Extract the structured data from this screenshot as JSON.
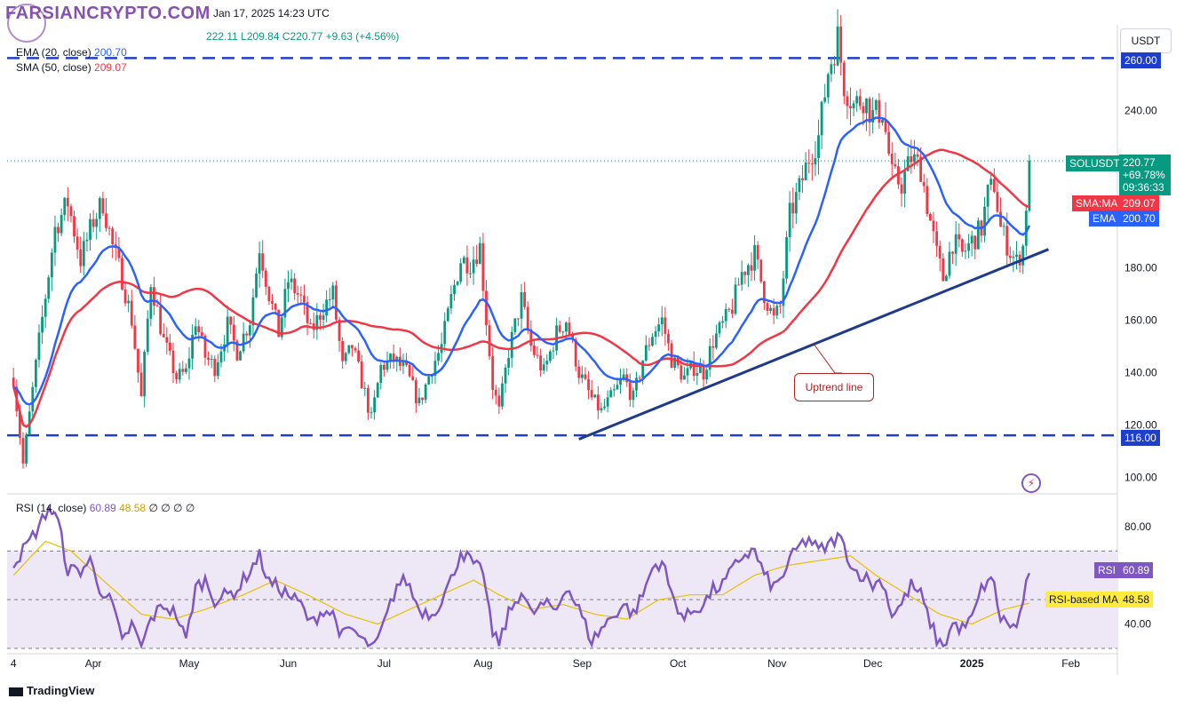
{
  "header": {
    "logo_text": "FARSIANCRYPTO.COM",
    "title_date": "Jan 17, 2025 14:23 UTC",
    "ohlc_high": "222.11",
    "ohlc_low": "L209.84",
    "ohlc_close": "C220.77",
    "ohlc_change": "+9.63 (+4.56%)",
    "ema_label": "EMA (20, close)",
    "ema_value": "200.70",
    "sma_label": "SMA (50, close)",
    "sma_value": "209.07",
    "rsi_label": "RSI (14, close)",
    "rsi_value": "60.89",
    "rsi_ma_value": "48.58",
    "rsi_extras": "∅ ∅ ∅ ∅"
  },
  "currency": "USDT",
  "branding": "TradingView",
  "annotation": "Uptrend line",
  "tags": {
    "top_level": "260.00",
    "bottom_level": "116.00",
    "symbol": "SOLUSDT",
    "price": "220.77",
    "change_pct": "+69.78%",
    "countdown": "09:36:33",
    "sma_tag": "SMA:MA",
    "sma_val": "209.07",
    "ema_tag": "EMA",
    "ema_val": "200.70",
    "rsi_tag": "RSI",
    "rsi_val": "60.89",
    "rsi_ma_tag": "RSI-based MA",
    "rsi_ma_val": "48.58"
  },
  "colors": {
    "up": "#089981",
    "down": "#f23645",
    "ema": "#2962ff",
    "sma": "#f23645",
    "level": "#1e3fcc",
    "trend": "#1e3a8a",
    "rsi": "#7e57c2",
    "rsi_ma": "#e5c100",
    "rsi_band": "#ede7f6"
  },
  "chart_data": {
    "type": "line",
    "symbol": "SOLUSDT",
    "ylim": [
      95,
      272
    ],
    "yticks": [
      100,
      120,
      140,
      160,
      180,
      200,
      220,
      240,
      260
    ],
    "ytick_labels": [
      "100.00",
      "120.00",
      "140.00",
      "160.00",
      "180.00",
      "",
      "",
      "240.00",
      ""
    ],
    "xticks": [
      "4",
      "Apr",
      "May",
      "Jun",
      "Jul",
      "Aug",
      "Sep",
      "Oct",
      "Nov",
      "Dec",
      "2025",
      "Feb"
    ],
    "xtick_days": [
      0,
      25,
      55,
      86,
      116,
      147,
      178,
      208,
      239,
      269,
      300,
      331
    ],
    "x_range_days": [
      -2,
      345
    ],
    "last_day": 318,
    "horizontal_levels": [
      260,
      116
    ],
    "trendline": {
      "from": [
        177,
        114.5
      ],
      "to": [
        324,
        187
      ]
    },
    "price_anchors": [
      [
        0,
        138
      ],
      [
        3,
        105
      ],
      [
        8,
        152
      ],
      [
        13,
        195
      ],
      [
        17,
        205
      ],
      [
        21,
        183
      ],
      [
        25,
        198
      ],
      [
        28,
        205
      ],
      [
        31,
        188
      ],
      [
        34,
        176
      ],
      [
        37,
        160
      ],
      [
        40,
        130
      ],
      [
        43,
        175
      ],
      [
        47,
        152
      ],
      [
        51,
        138
      ],
      [
        54,
        140
      ],
      [
        57,
        160
      ],
      [
        60,
        146
      ],
      [
        63,
        142
      ],
      [
        67,
        158
      ],
      [
        70,
        148
      ],
      [
        74,
        160
      ],
      [
        77,
        188
      ],
      [
        80,
        170
      ],
      [
        83,
        155
      ],
      [
        86,
        175
      ],
      [
        90,
        168
      ],
      [
        93,
        155
      ],
      [
        97,
        165
      ],
      [
        100,
        170
      ],
      [
        103,
        142
      ],
      [
        106,
        150
      ],
      [
        110,
        132
      ],
      [
        112,
        122
      ],
      [
        115,
        142
      ],
      [
        119,
        145
      ],
      [
        123,
        140
      ],
      [
        127,
        128
      ],
      [
        131,
        142
      ],
      [
        134,
        150
      ],
      [
        137,
        168
      ],
      [
        140,
        183
      ],
      [
        143,
        182
      ],
      [
        146,
        188
      ],
      [
        148,
        160
      ],
      [
        150,
        135
      ],
      [
        152,
        125
      ],
      [
        155,
        148
      ],
      [
        159,
        168
      ],
      [
        162,
        150
      ],
      [
        166,
        140
      ],
      [
        170,
        155
      ],
      [
        173,
        160
      ],
      [
        177,
        140
      ],
      [
        181,
        130
      ],
      [
        184,
        125
      ],
      [
        188,
        132
      ],
      [
        191,
        138
      ],
      [
        194,
        130
      ],
      [
        197,
        145
      ],
      [
        200,
        155
      ],
      [
        203,
        160
      ],
      [
        206,
        145
      ],
      [
        210,
        138
      ],
      [
        213,
        142
      ],
      [
        216,
        140
      ],
      [
        219,
        152
      ],
      [
        222,
        158
      ],
      [
        225,
        165
      ],
      [
        228,
        178
      ],
      [
        232,
        185
      ],
      [
        235,
        170
      ],
      [
        238,
        160
      ],
      [
        240,
        165
      ],
      [
        243,
        200
      ],
      [
        246,
        210
      ],
      [
        249,
        222
      ],
      [
        252,
        230
      ],
      [
        255,
        255
      ],
      [
        258,
        268
      ],
      [
        260,
        250
      ],
      [
        263,
        242
      ],
      [
        266,
        245
      ],
      [
        269,
        238
      ],
      [
        272,
        240
      ],
      [
        275,
        215
      ],
      [
        278,
        212
      ],
      [
        281,
        222
      ],
      [
        284,
        218
      ],
      [
        286,
        204
      ],
      [
        289,
        185
      ],
      [
        291,
        176
      ],
      [
        294,
        190
      ],
      [
        297,
        185
      ],
      [
        300,
        190
      ],
      [
        303,
        195
      ],
      [
        305,
        208
      ],
      [
        307,
        212
      ],
      [
        309,
        195
      ],
      [
        312,
        186
      ],
      [
        314,
        182
      ],
      [
        316,
        188
      ],
      [
        318,
        220.77
      ]
    ],
    "rsi": {
      "ylim": [
        30,
        92
      ],
      "yticks": [
        40,
        80
      ],
      "ytick_labels": [
        "40.00",
        "80.00"
      ],
      "upper": 70,
      "lower": 30,
      "middle": 50,
      "anchors": [
        [
          0,
          65
        ],
        [
          4,
          72
        ],
        [
          8,
          80
        ],
        [
          11,
          88
        ],
        [
          14,
          82
        ],
        [
          17,
          62
        ],
        [
          21,
          62
        ],
        [
          24,
          66
        ],
        [
          27,
          55
        ],
        [
          31,
          48
        ],
        [
          34,
          32
        ],
        [
          37,
          40
        ],
        [
          40,
          30
        ],
        [
          43,
          42
        ],
        [
          47,
          48
        ],
        [
          51,
          44
        ],
        [
          54,
          33
        ],
        [
          57,
          55
        ],
        [
          60,
          58
        ],
        [
          63,
          50
        ],
        [
          67,
          52
        ],
        [
          70,
          54
        ],
        [
          74,
          62
        ],
        [
          77,
          68
        ],
        [
          80,
          57
        ],
        [
          83,
          55
        ],
        [
          86,
          52
        ],
        [
          90,
          48
        ],
        [
          93,
          40
        ],
        [
          97,
          46
        ],
        [
          100,
          44
        ],
        [
          103,
          35
        ],
        [
          106,
          38
        ],
        [
          110,
          32
        ],
        [
          113,
          30
        ],
        [
          116,
          40
        ],
        [
          120,
          56
        ],
        [
          123,
          58
        ],
        [
          127,
          46
        ],
        [
          131,
          44
        ],
        [
          134,
          50
        ],
        [
          137,
          58
        ],
        [
          140,
          70
        ],
        [
          143,
          66
        ],
        [
          146,
          62
        ],
        [
          148,
          55
        ],
        [
          150,
          35
        ],
        [
          152,
          32
        ],
        [
          155,
          44
        ],
        [
          159,
          54
        ],
        [
          162,
          44
        ],
        [
          166,
          48
        ],
        [
          170,
          46
        ],
        [
          173,
          56
        ],
        [
          177,
          46
        ],
        [
          181,
          33
        ],
        [
          184,
          38
        ],
        [
          188,
          44
        ],
        [
          191,
          48
        ],
        [
          194,
          44
        ],
        [
          197,
          52
        ],
        [
          200,
          63
        ],
        [
          203,
          66
        ],
        [
          206,
          52
        ],
        [
          210,
          42
        ],
        [
          213,
          46
        ],
        [
          216,
          48
        ],
        [
          219,
          54
        ],
        [
          222,
          56
        ],
        [
          225,
          62
        ],
        [
          228,
          68
        ],
        [
          232,
          70
        ],
        [
          235,
          60
        ],
        [
          238,
          55
        ],
        [
          240,
          58
        ],
        [
          243,
          66
        ],
        [
          246,
          72
        ],
        [
          249,
          75
        ],
        [
          252,
          70
        ],
        [
          255,
          72
        ],
        [
          258,
          76
        ],
        [
          260,
          72
        ],
        [
          263,
          62
        ],
        [
          266,
          60
        ],
        [
          269,
          56
        ],
        [
          272,
          58
        ],
        [
          275,
          44
        ],
        [
          278,
          48
        ],
        [
          281,
          56
        ],
        [
          284,
          52
        ],
        [
          286,
          44
        ],
        [
          289,
          34
        ],
        [
          291,
          30
        ],
        [
          294,
          40
        ],
        [
          297,
          38
        ],
        [
          300,
          42
        ],
        [
          303,
          54
        ],
        [
          305,
          58
        ],
        [
          307,
          56
        ],
        [
          309,
          42
        ],
        [
          312,
          40
        ],
        [
          314,
          38
        ],
        [
          316,
          50
        ],
        [
          318,
          60.89
        ]
      ],
      "ma_anchors": [
        [
          0,
          60
        ],
        [
          10,
          74
        ],
        [
          18,
          70
        ],
        [
          28,
          58
        ],
        [
          40,
          44
        ],
        [
          50,
          42
        ],
        [
          60,
          46
        ],
        [
          72,
          52
        ],
        [
          82,
          58
        ],
        [
          92,
          52
        ],
        [
          104,
          44
        ],
        [
          114,
          40
        ],
        [
          124,
          46
        ],
        [
          134,
          52
        ],
        [
          144,
          58
        ],
        [
          152,
          52
        ],
        [
          162,
          46
        ],
        [
          172,
          48
        ],
        [
          182,
          44
        ],
        [
          192,
          42
        ],
        [
          202,
          50
        ],
        [
          212,
          52
        ],
        [
          222,
          52
        ],
        [
          232,
          60
        ],
        [
          242,
          64
        ],
        [
          252,
          66
        ],
        [
          262,
          68
        ],
        [
          270,
          60
        ],
        [
          280,
          52
        ],
        [
          290,
          44
        ],
        [
          300,
          40
        ],
        [
          310,
          46
        ],
        [
          318,
          48.58
        ]
      ]
    }
  }
}
